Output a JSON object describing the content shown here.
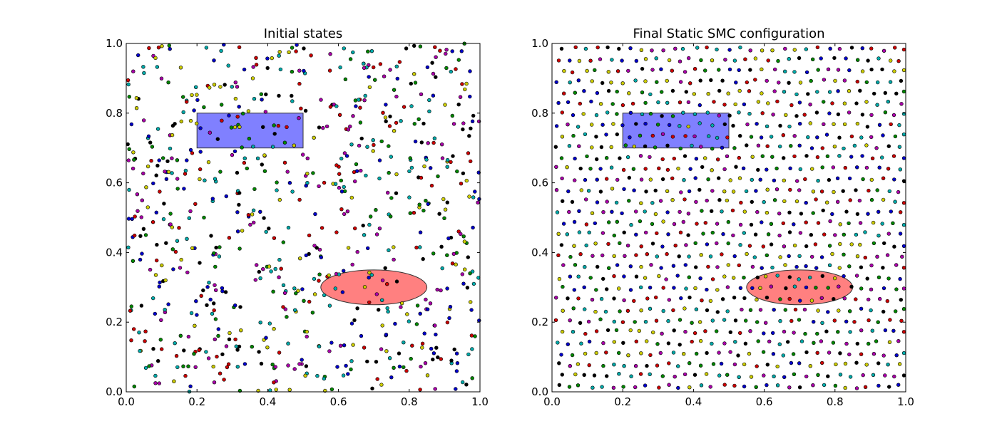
{
  "chart_data": [
    {
      "type": "scatter",
      "title": "Initial states",
      "xlabel": "",
      "ylabel": "",
      "xlim": [
        0.0,
        1.0
      ],
      "ylim": [
        0.0,
        1.0
      ],
      "xticks": [
        "0.0",
        "0.2",
        "0.4",
        "0.6",
        "0.8",
        "1.0"
      ],
      "yticks": [
        "0.0",
        "0.2",
        "0.4",
        "0.6",
        "0.8",
        "1.0"
      ],
      "grid": false,
      "distribution": "uniform-random",
      "point_count": 800,
      "point_colors": [
        "#000000",
        "#0000cc",
        "#cc0000",
        "#00aaaa",
        "#cccc00",
        "#008800",
        "#aa00aa"
      ],
      "regions": [
        {
          "shape": "rectangle",
          "x": [
            0.2,
            0.5
          ],
          "y": [
            0.7,
            0.8
          ],
          "color": "#8080ff"
        },
        {
          "shape": "ellipse",
          "center": [
            0.7,
            0.3
          ],
          "width": 0.3,
          "height": 0.1,
          "color": "#ff8080"
        }
      ]
    },
    {
      "type": "scatter",
      "title": "Final Static SMC configuration",
      "xlabel": "",
      "ylabel": "",
      "xlim": [
        0.0,
        1.0
      ],
      "ylim": [
        0.0,
        1.0
      ],
      "xticks": [
        "0.0",
        "0.2",
        "0.4",
        "0.6",
        "0.8",
        "1.0"
      ],
      "yticks": [
        "0.0",
        "0.2",
        "0.4",
        "0.6",
        "0.8",
        "1.0"
      ],
      "grid": false,
      "distribution": "evenly-spaced",
      "point_count": 1035,
      "point_colors": [
        "#000000",
        "#0000cc",
        "#cc0000",
        "#00aaaa",
        "#cccc00",
        "#008800",
        "#aa00aa"
      ],
      "regions": [
        {
          "shape": "rectangle",
          "x": [
            0.2,
            0.5
          ],
          "y": [
            0.7,
            0.8
          ],
          "color": "#8080ff"
        },
        {
          "shape": "ellipse",
          "center": [
            0.7,
            0.3
          ],
          "width": 0.3,
          "height": 0.1,
          "color": "#ff8080"
        }
      ]
    }
  ]
}
